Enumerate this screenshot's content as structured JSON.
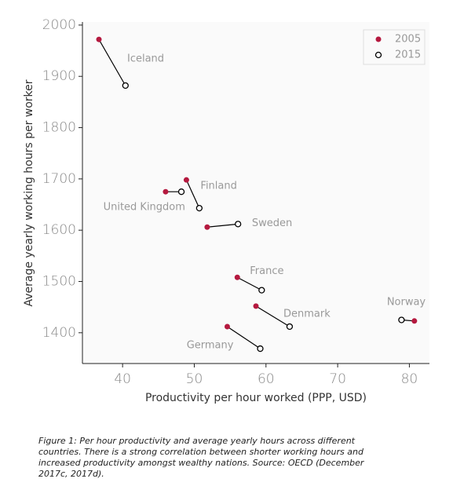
{
  "chart_data": {
    "type": "scatter",
    "xlabel": "Productivity per hour worked (PPP, USD)",
    "ylabel": "Average yearly working hours per worker",
    "categories": [
      "Iceland",
      "Finland",
      "United Kingdom",
      "Sweden",
      "France",
      "Denmark",
      "Germany",
      "Norway"
    ],
    "series": [
      {
        "name": "2005",
        "color": "#b5193f",
        "x": [
          36.7,
          48.9,
          46.0,
          51.8,
          56.0,
          58.6,
          54.6,
          80.7
        ],
        "values": [
          1972,
          1698,
          1675,
          1606,
          1508,
          1452,
          1412,
          1423
        ]
      },
      {
        "name": "2015",
        "color": "#000000",
        "x": [
          40.4,
          50.7,
          48.2,
          56.1,
          59.4,
          63.3,
          59.2,
          78.9
        ],
        "values": [
          1882,
          1643,
          1675,
          1612,
          1483,
          1412,
          1369,
          1425
        ]
      }
    ],
    "xlim": [
      34.4,
      82.8
    ],
    "xticks": [
      40,
      50,
      60,
      70,
      80
    ],
    "ylim": [
      1340,
      2006
    ],
    "yticks": [
      1400,
      1500,
      1600,
      1700,
      1800,
      1900,
      2000
    ],
    "legend": "upper right",
    "caption": [
      "Figure 1: Per hour productivity and average yearly hours across different",
      "countries. There is a strong correlation between shorter working hours and",
      "increased productivity amongst wealthy nations. Source: OECD (December",
      "2017c, 2017d)."
    ]
  }
}
